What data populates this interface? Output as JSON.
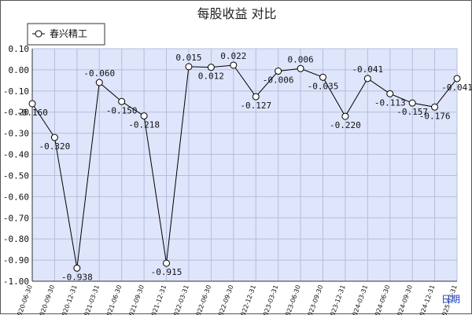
{
  "chart_data": {
    "type": "line",
    "title": "每股收益  对比",
    "xlabel": "日期",
    "ylabel": "",
    "ylim": [
      -1.0,
      0.1
    ],
    "yticks": [
      "0.10",
      "0.00",
      "-0.10",
      "-0.20",
      "-0.30",
      "-0.40",
      "-0.50",
      "-0.60",
      "-0.70",
      "-0.80",
      "-0.90",
      "-1.00"
    ],
    "ytick_values": [
      0.1,
      0.0,
      -0.1,
      -0.2,
      -0.3,
      -0.4,
      -0.5,
      -0.6,
      -0.7,
      -0.8,
      -0.9,
      -1.0
    ],
    "categories": [
      "2020-06-30",
      "2020-09-30",
      "2020-12-31",
      "2021-03-31",
      "2021-06-30",
      "2021-09-30",
      "2021-12-31",
      "2022-03-31",
      "2022-06-30",
      "2022-09-30",
      "2022-12-31",
      "2023-03-31",
      "2023-06-30",
      "2023-09-30",
      "2023-12-31",
      "2024-03-31",
      "2024-06-30",
      "2024-09-30",
      "2024-12-31",
      "2025-03-31"
    ],
    "series": [
      {
        "name": "春兴精工",
        "values": [
          -0.16,
          -0.32,
          -0.938,
          -0.06,
          -0.15,
          -0.218,
          -0.915,
          0.015,
          0.012,
          0.022,
          -0.127,
          -0.006,
          0.006,
          -0.035,
          -0.22,
          -0.041,
          -0.113,
          -0.157,
          -0.176,
          -0.041
        ],
        "labels": [
          "-0.160",
          "-0.320",
          "-0.938",
          "-0.060",
          "-0.150",
          "-0.218",
          "-0.915",
          "0.015",
          "0.012",
          "0.022",
          "-0.127",
          "-0.006",
          "0.006",
          "-0.035",
          "-0.220",
          "-0.041",
          "-0.113",
          "-0.157",
          "-0.176",
          "-0.041"
        ]
      }
    ],
    "legend": "top-left",
    "grid": true,
    "colors": {
      "plot_bg": "#dfe5fb",
      "grid": "#b4bedc",
      "line": "#000000"
    }
  }
}
